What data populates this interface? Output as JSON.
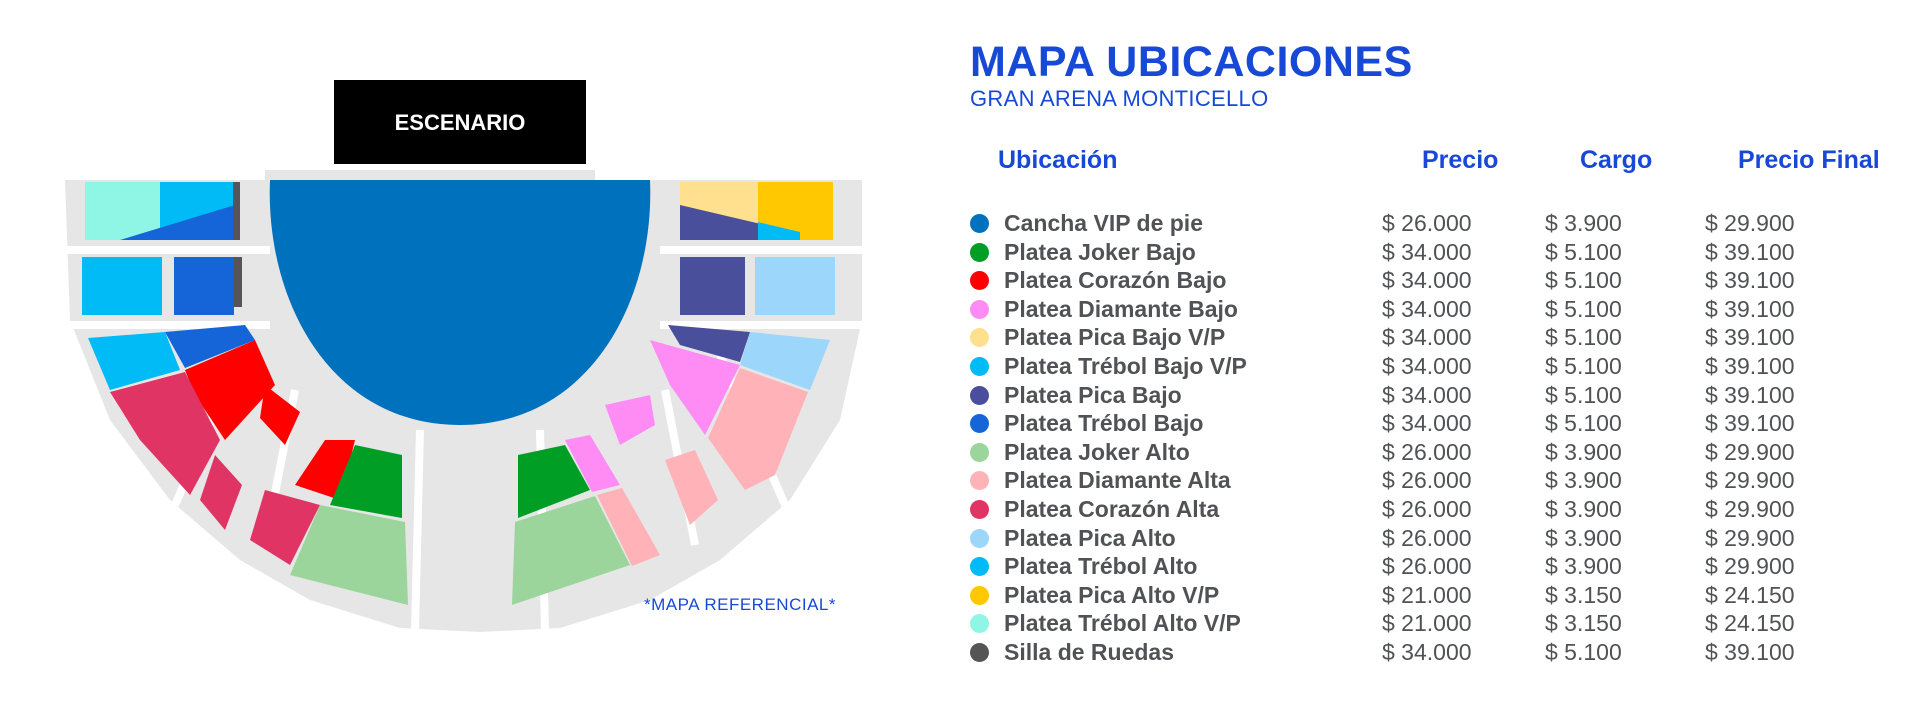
{
  "map": {
    "stage_label": "ESCENARIO",
    "note": "*MAPA REFERENCIAL*"
  },
  "title": "MAPA UBICACIONES",
  "subtitle": "GRAN ARENA MONTICELLO",
  "headers": {
    "location": "Ubicación",
    "price": "Precio",
    "fee": "Cargo",
    "final": "Precio Final"
  },
  "colors": {
    "accent": "#1749d6",
    "vip": "#0071bc",
    "joker_bajo": "#009e25",
    "corazon_bajo": "#ff0000",
    "diamante_bajo": "#ff8cf5",
    "pica_bajo_vp": "#ffe08f",
    "trebol_bajo_vp": "#00bbf5",
    "pica_bajo": "#4a4f9b",
    "trebol_bajo": "#1565d8",
    "joker_alto": "#9cd59c",
    "diamante_alta": "#ffb3b8",
    "corazon_alta": "#e03465",
    "pica_alto": "#9dd6fb",
    "trebol_alto": "#00bbf5",
    "pica_alto_vp": "#ffc800",
    "trebol_alto_vp": "#8ff5e4",
    "silla": "#555555",
    "gray": "#e6e6e6"
  },
  "rows": [
    {
      "name": "Cancha VIP de pie",
      "color": "#0071bc",
      "price": "$ 26.000",
      "fee": "$ 3.900",
      "final": "$ 29.900"
    },
    {
      "name": "Platea Joker Bajo",
      "color": "#009e25",
      "price": "$ 34.000",
      "fee": "$ 5.100",
      "final": "$ 39.100"
    },
    {
      "name": "Platea Corazón Bajo",
      "color": "#ff0000",
      "price": "$ 34.000",
      "fee": "$ 5.100",
      "final": "$ 39.100"
    },
    {
      "name": "Platea Diamante Bajo",
      "color": "#ff8cf5",
      "price": "$ 34.000",
      "fee": "$ 5.100",
      "final": "$ 39.100"
    },
    {
      "name": "Platea Pica Bajo V/P",
      "color": "#ffe08f",
      "price": "$ 34.000",
      "fee": "$ 5.100",
      "final": "$ 39.100"
    },
    {
      "name": "Platea Trébol Bajo V/P",
      "color": "#00bbf5",
      "price": "$ 34.000",
      "fee": "$ 5.100",
      "final": "$ 39.100"
    },
    {
      "name": "Platea Pica Bajo",
      "color": "#4a4f9b",
      "price": "$ 34.000",
      "fee": "$ 5.100",
      "final": "$ 39.100"
    },
    {
      "name": "Platea Trébol Bajo",
      "color": "#1565d8",
      "price": "$ 34.000",
      "fee": "$ 5.100",
      "final": "$ 39.100"
    },
    {
      "name": "Platea Joker Alto",
      "color": "#9cd59c",
      "price": "$ 26.000",
      "fee": "$ 3.900",
      "final": "$ 29.900"
    },
    {
      "name": "Platea Diamante Alta",
      "color": "#ffb3b8",
      "price": "$ 26.000",
      "fee": "$ 3.900",
      "final": "$ 29.900"
    },
    {
      "name": "Platea Corazón Alta",
      "color": "#e03465",
      "price": "$ 26.000",
      "fee": "$ 3.900",
      "final": "$ 29.900"
    },
    {
      "name": "Platea Pica Alto",
      "color": "#9dd6fb",
      "price": "$ 26.000",
      "fee": "$ 3.900",
      "final": "$ 29.900"
    },
    {
      "name": "Platea Trébol Alto",
      "color": "#00bbf5",
      "price": "$ 26.000",
      "fee": "$ 3.900",
      "final": "$ 29.900"
    },
    {
      "name": "Platea Pica Alto V/P",
      "color": "#ffc800",
      "price": "$ 21.000",
      "fee": "$ 3.150",
      "final": "$ 24.150"
    },
    {
      "name": "Platea Trébol Alto V/P",
      "color": "#8ff5e4",
      "price": "$ 21.000",
      "fee": "$ 3.150",
      "final": "$ 24.150"
    },
    {
      "name": "Silla de Ruedas",
      "color": "#555555",
      "price": "$ 34.000",
      "fee": "$ 5.100",
      "final": "$ 39.100"
    }
  ]
}
